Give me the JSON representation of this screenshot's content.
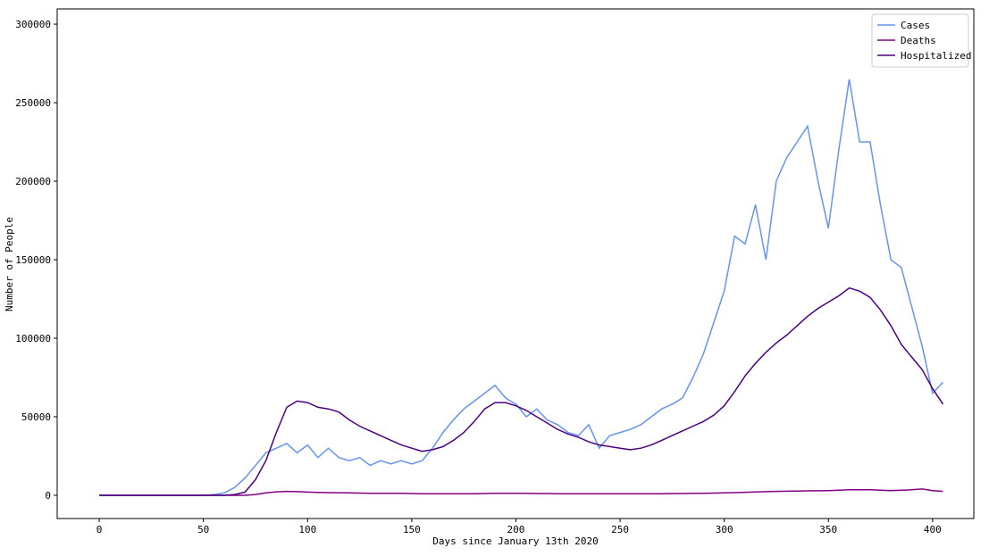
{
  "chart_data": {
    "type": "line",
    "xlabel": "Days since January 13th 2020",
    "ylabel": "Number of People",
    "x": [
      0,
      5,
      10,
      15,
      20,
      25,
      30,
      35,
      40,
      45,
      50,
      55,
      60,
      65,
      70,
      75,
      80,
      85,
      90,
      95,
      100,
      105,
      110,
      115,
      120,
      125,
      130,
      135,
      140,
      145,
      150,
      155,
      160,
      165,
      170,
      175,
      180,
      185,
      190,
      195,
      200,
      205,
      210,
      215,
      220,
      225,
      230,
      235,
      240,
      245,
      250,
      255,
      260,
      265,
      270,
      275,
      280,
      285,
      290,
      295,
      300,
      305,
      310,
      315,
      320,
      325,
      330,
      335,
      340,
      345,
      350,
      355,
      360,
      365,
      370,
      375,
      380,
      385,
      390,
      395,
      400,
      405
    ],
    "series": [
      {
        "name": "Cases",
        "color": "#6495ed",
        "values": [
          0,
          0,
          0,
          0,
          0,
          0,
          0,
          0,
          0,
          0,
          0,
          500,
          1500,
          5000,
          11000,
          19000,
          27000,
          30000,
          33000,
          27000,
          32000,
          24000,
          30000,
          24000,
          22000,
          24000,
          19000,
          22000,
          20000,
          22000,
          20000,
          22000,
          30000,
          40000,
          48000,
          55000,
          60000,
          65000,
          70000,
          62000,
          58000,
          50000,
          55000,
          48000,
          45000,
          40000,
          38000,
          45000,
          30000,
          38000,
          40000,
          42000,
          45000,
          50000,
          55000,
          58000,
          62000,
          75000,
          90000,
          110000,
          130000,
          165000,
          160000,
          185000,
          150000,
          200000,
          215000,
          225000,
          235000,
          200000,
          170000,
          220000,
          265000,
          225000,
          225000,
          185000,
          150000,
          145000,
          120000,
          95000,
          65000,
          72000
        ]
      },
      {
        "name": "Deaths",
        "color": "#800080",
        "values": [
          0,
          0,
          0,
          0,
          0,
          0,
          0,
          0,
          0,
          0,
          0,
          0,
          0,
          0,
          0,
          500,
          1500,
          2200,
          2500,
          2300,
          2000,
          1800,
          1700,
          1600,
          1500,
          1400,
          1300,
          1300,
          1200,
          1200,
          1100,
          1000,
          1000,
          1000,
          1000,
          1000,
          1000,
          1100,
          1200,
          1200,
          1200,
          1200,
          1100,
          1100,
          1000,
          1000,
          1000,
          1000,
          1000,
          1000,
          1000,
          1000,
          1000,
          1000,
          1000,
          1100,
          1100,
          1200,
          1300,
          1400,
          1500,
          1700,
          1900,
          2100,
          2300,
          2500,
          2600,
          2700,
          2800,
          2900,
          3000,
          3200,
          3500,
          3500,
          3500,
          3300,
          3000,
          3200,
          3500,
          4000,
          3000,
          2500
        ]
      },
      {
        "name": "Hospitalized",
        "color": "#4b0082",
        "values": [
          0,
          0,
          0,
          0,
          0,
          0,
          0,
          0,
          0,
          0,
          0,
          0,
          0,
          500,
          2000,
          10000,
          22000,
          40000,
          56000,
          60000,
          59000,
          56000,
          55000,
          53000,
          48000,
          44000,
          41000,
          38000,
          35000,
          32000,
          30000,
          28000,
          29000,
          31000,
          35000,
          40000,
          47000,
          55000,
          59000,
          59000,
          57000,
          54000,
          50000,
          46000,
          42000,
          39000,
          37000,
          34000,
          32000,
          31000,
          30000,
          29000,
          30000,
          32000,
          35000,
          38000,
          41000,
          44000,
          47000,
          51000,
          57000,
          66000,
          76000,
          84000,
          91000,
          97000,
          102000,
          108000,
          114000,
          119000,
          123000,
          127000,
          132000,
          130000,
          126000,
          118000,
          108000,
          96000,
          88000,
          80000,
          68000,
          58000
        ]
      }
    ],
    "xlim": [
      -20.2,
      419.8
    ],
    "ylim": [
      -14800,
      309700
    ],
    "xticks": [
      0,
      50,
      100,
      150,
      200,
      250,
      300,
      350,
      400
    ],
    "yticks": [
      0,
      50000,
      100000,
      150000,
      200000,
      250000,
      300000
    ],
    "legend": "upper right"
  }
}
